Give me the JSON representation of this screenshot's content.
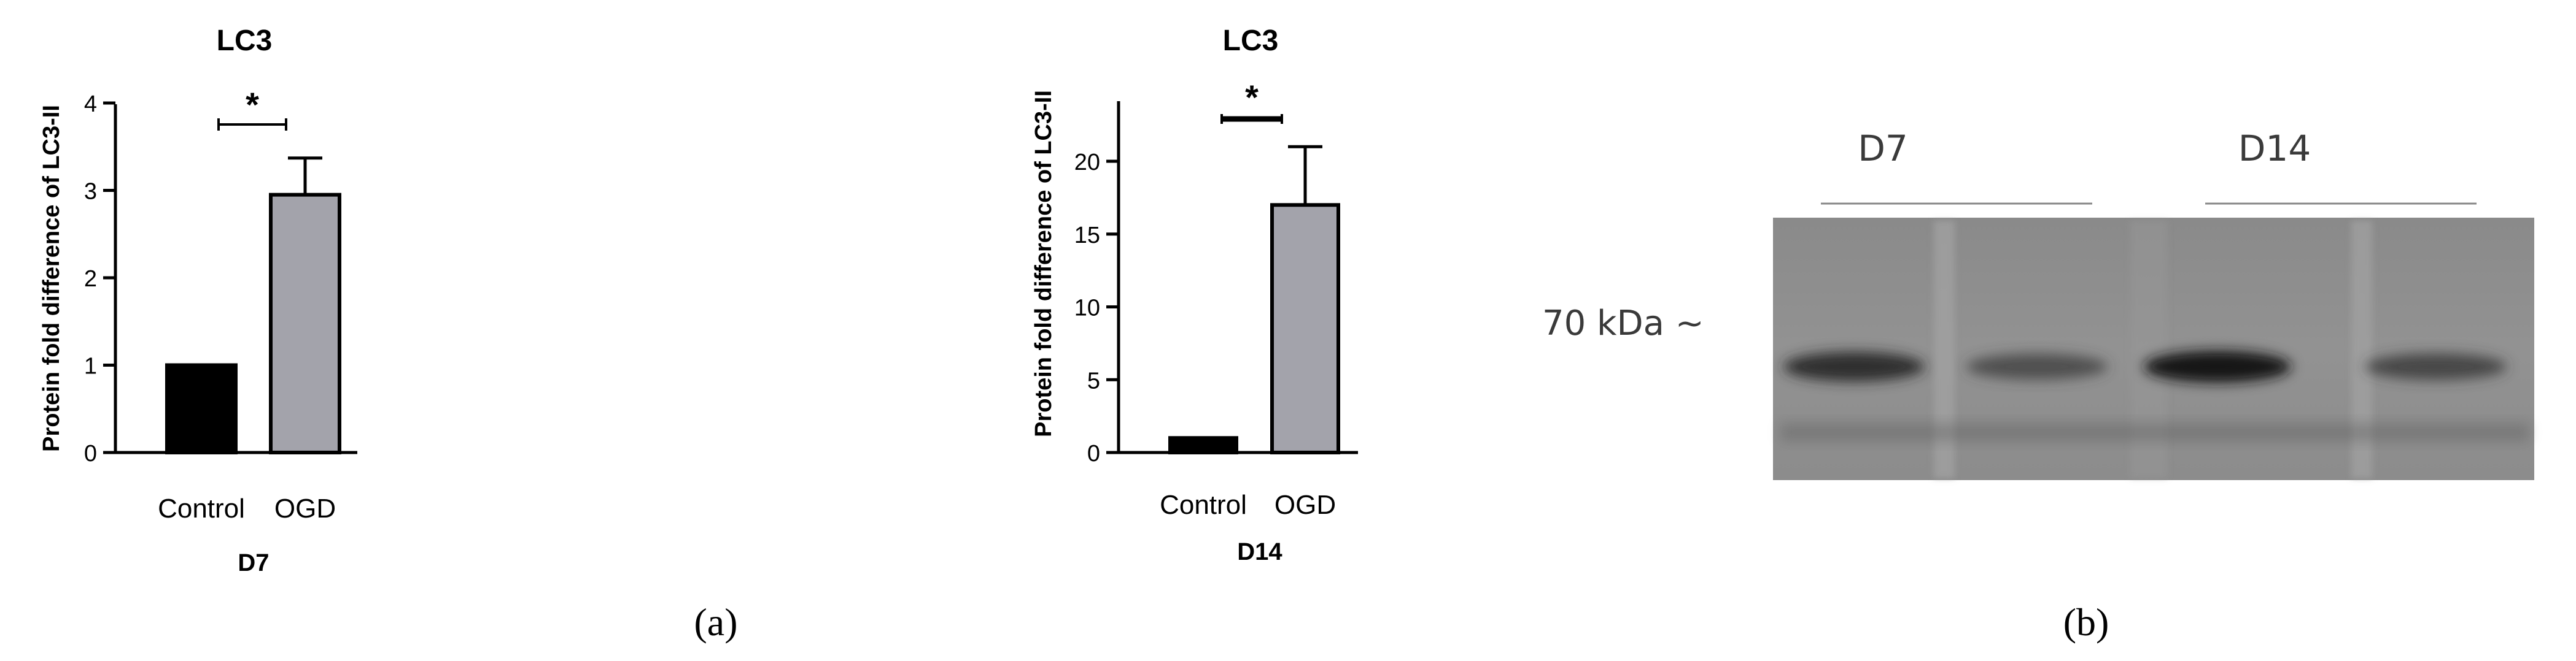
{
  "chart_data": [
    {
      "type": "bar",
      "title": "LC3",
      "ylabel": "Protein fold difference of LC3-II",
      "xlabel": "D7",
      "categories": [
        "Control",
        "OGD"
      ],
      "values": [
        1.0,
        2.95
      ],
      "errors": [
        0,
        0.42
      ],
      "bar_colors": [
        "#000000",
        "#a3a3ab"
      ],
      "ylim": [
        0,
        4
      ],
      "yticks": [
        "0",
        "1",
        "2",
        "3",
        "4"
      ],
      "significance": "*",
      "grid": false
    },
    {
      "type": "bar",
      "title": "LC3",
      "ylabel": "Protein fold difference of LC3-II",
      "xlabel": "D14",
      "categories": [
        "Control",
        "OGD"
      ],
      "values": [
        1.0,
        17.0
      ],
      "errors": [
        0,
        4.0
      ],
      "bar_colors": [
        "#000000",
        "#a3a3ab"
      ],
      "ylim": [
        0,
        24
      ],
      "yticks": [
        "0",
        "5",
        "10",
        "15",
        "20"
      ],
      "significance": "*",
      "grid": false
    }
  ],
  "blot": {
    "group_labels": [
      "D7",
      "D14"
    ],
    "marker_label": "70 kDa ~",
    "band_intensities": [
      0.85,
      0.6,
      1.0,
      0.65
    ]
  },
  "panel_labels": [
    "(a)",
    "(b)"
  ]
}
